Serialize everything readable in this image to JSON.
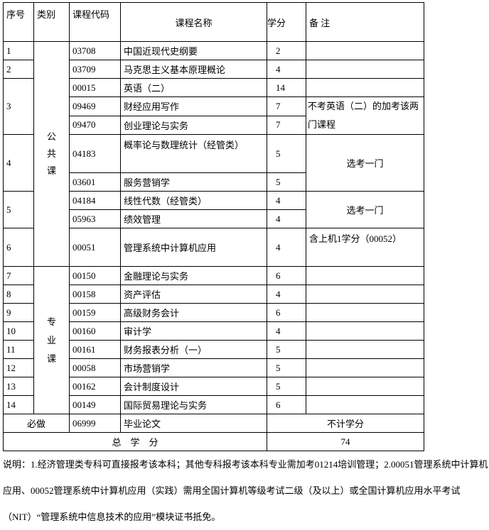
{
  "header": {
    "seq": "序号",
    "category": "类别",
    "code": "课程代码",
    "name": "课程名称",
    "credits": "学分",
    "remarks": "备 注"
  },
  "categories": {
    "public": "公共课",
    "professional": "专业课",
    "required": "必做"
  },
  "rows": [
    {
      "seq": "1",
      "code": "03708",
      "name": "中国近现代史纲要",
      "credits": "2"
    },
    {
      "seq": "2",
      "code": "03709",
      "name": "马克思主义基本原理概论",
      "credits": "4"
    },
    {
      "seq": "3",
      "code": "00015",
      "name": "英语（二）",
      "credits": "14"
    },
    {
      "code": "09469",
      "name": "财经应用写作",
      "credits": "7"
    },
    {
      "code": "09470",
      "name": "创业理论与实务",
      "credits": "7"
    },
    {
      "seq": "4",
      "code": "04183",
      "name": "概率论与数理统计（经管类）",
      "credits": "5"
    },
    {
      "code": "03601",
      "name": "服务营销学",
      "credits": "5"
    },
    {
      "seq": "5",
      "code": "04184",
      "name": "线性代数（经管类）",
      "credits": "4"
    },
    {
      "code": "05963",
      "name": "绩效管理",
      "credits": "4"
    },
    {
      "seq": "6",
      "code": "00051",
      "name": "管理系统中计算机应用",
      "credits": "4"
    },
    {
      "seq": "7",
      "code": "00150",
      "name": "金融理论与实务",
      "credits": "6"
    },
    {
      "seq": "8",
      "code": "00158",
      "name": "资产评估",
      "credits": "4"
    },
    {
      "seq": "9",
      "code": "00159",
      "name": "高级财务会计",
      "credits": "6"
    },
    {
      "seq": "10",
      "code": "00160",
      "name": "审计学",
      "credits": "4"
    },
    {
      "seq": "11",
      "code": "00161",
      "name": "财务报表分析（一）",
      "credits": "5"
    },
    {
      "seq": "12",
      "code": "00058",
      "name": "市场营销学",
      "credits": "5"
    },
    {
      "seq": "13",
      "code": "00162",
      "name": "会计制度设计",
      "credits": "5"
    },
    {
      "seq": "14",
      "code": "00149",
      "name": "国际贸易理论与实务",
      "credits": "6"
    },
    {
      "code": "06999",
      "name": "毕业论文",
      "credits": "不计学分"
    }
  ],
  "remarks": {
    "english_alt": "不考英语（二）的加考该两门课程",
    "choose_one": "选考一门",
    "choose_one_2": "选考一门",
    "lab": "含上机1学分（00052）"
  },
  "total": {
    "label": "总　学　分",
    "value": "74"
  },
  "note": "说明：1.经济管理类专科可直接报考该本科；其他专科报考该本科专业需加考01214培训管理；2.00051管理系统中计算机应用、00052管理系统中计算机应用（实践）需用全国计算机等级考试二级（及以上）或全国计算机应用水平考试（NIT）“管理系统中信息技术的应用”模块证书抵免。"
}
